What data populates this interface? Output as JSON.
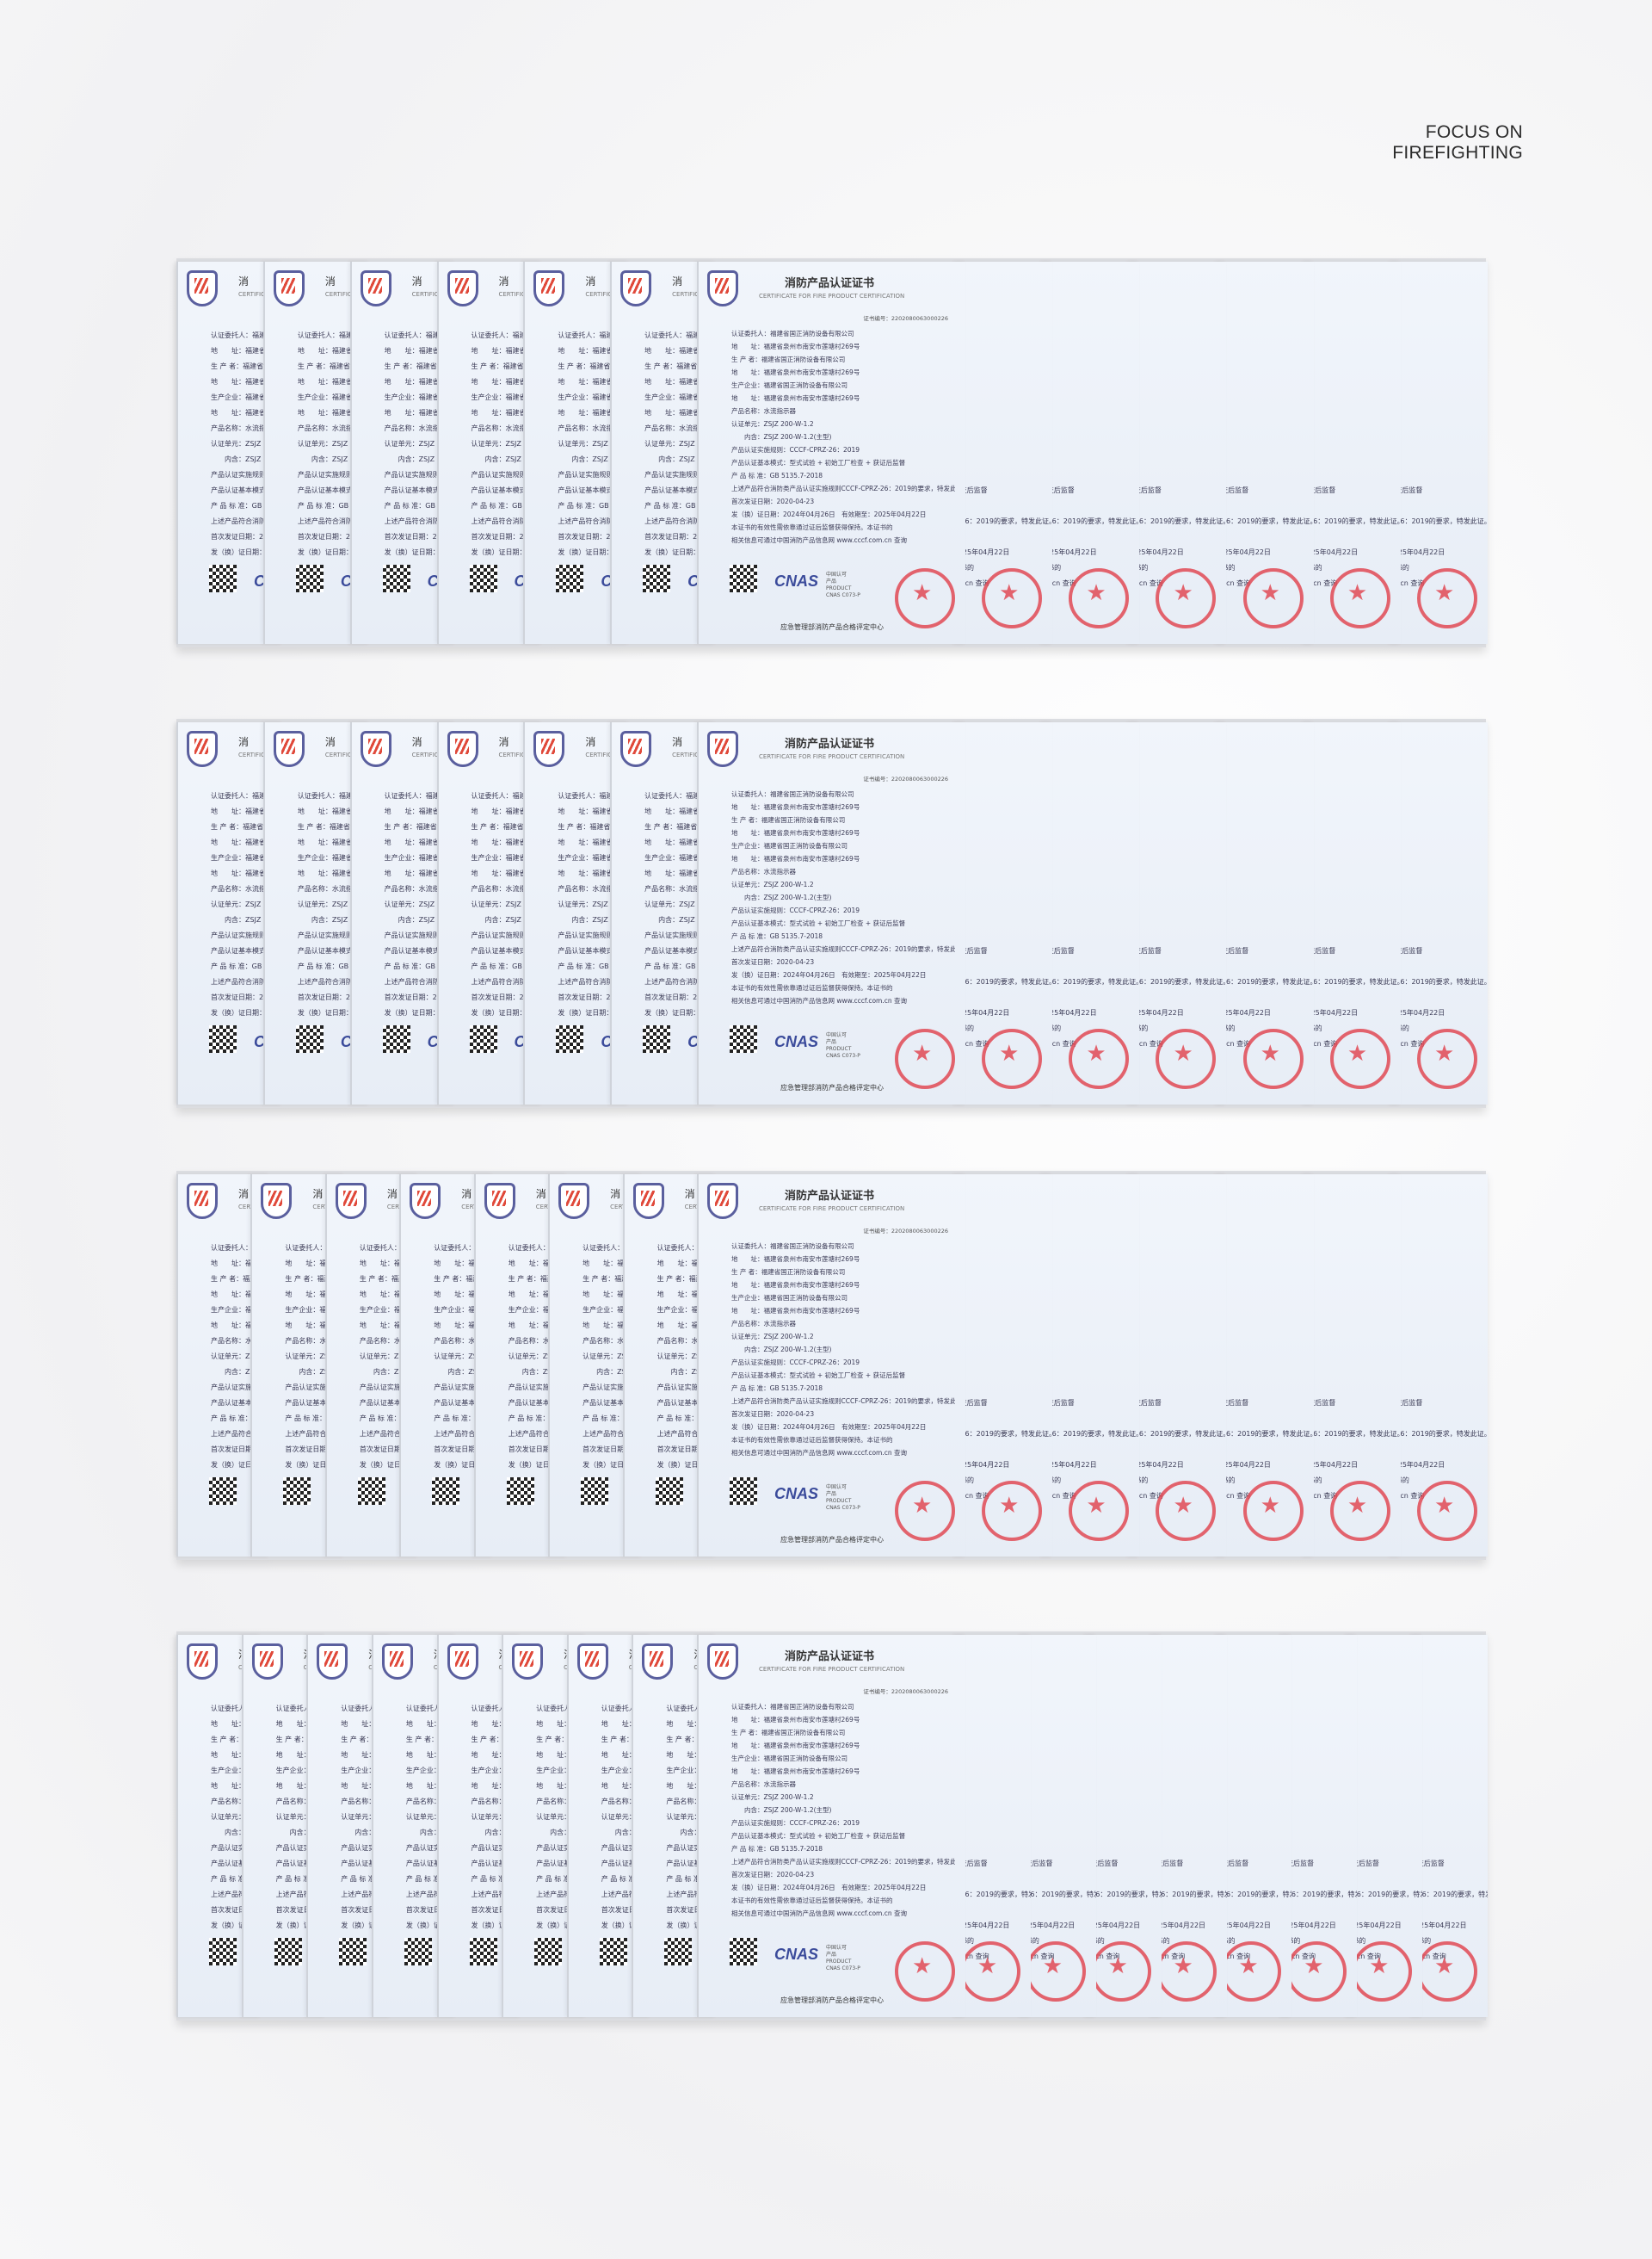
{
  "brand": {
    "line1": "FOCUS ON",
    "line2": "FIREFIGHTING"
  },
  "certificate": {
    "title": "消防产品认证证书",
    "subtitle": "CERTIFICATE FOR FIRE PRODUCT CERTIFICATION",
    "strip_title": "消",
    "strip_subtitle": "CERTIFICATE",
    "cert_no": "证书编号：2202080063000226",
    "fields": [
      "认证委托人：福建省国正消防设备有限公司",
      "地　　址：福建省泉州市南安市莲塘村269号",
      "生 产 者：福建省国正消防设备有限公司",
      "地　　址：福建省泉州市南安市莲塘村269号",
      "生产企业：福建省国正消防设备有限公司",
      "地　　址：福建省泉州市南安市莲塘村269号",
      "产品名称：水流指示器",
      "认证单元：ZSJZ 200-W-1.2",
      "　　内含：ZSJZ 200-W-1.2(主型)",
      "产品认证实施规则：CCCF-CPRZ-26：2019",
      "产品认证基本模式：型式试验 + 初始工厂检查 + 获证后监督",
      "产 品 标 准：GB 5135.7-2018",
      "上述产品符合消防类产品认证实施规则CCCF-CPRZ-26：2019的要求，特发此证。",
      "首次发证日期：2020-04-23",
      "发（换）证日期：2024年04月26日　有效期至：2025年04月22日",
      "本证书的有效性需依靠通过证后监督获得保持。本证书的",
      "相关信息可通过中国消防产品信息网 www.cccf.com.cn 查询"
    ],
    "cnas_logo": "CNAS",
    "cnas_info": [
      "中国认可",
      "产品",
      "PRODUCT",
      "CNAS C073-P"
    ],
    "issuer": "应急管理部消防产品合格评定中心"
  },
  "rows": [
    {
      "left_cards": 6,
      "right_cards": 6
    },
    {
      "left_cards": 6,
      "right_cards": 6
    },
    {
      "left_cards": 7,
      "right_cards": 6
    },
    {
      "left_cards": 8,
      "right_cards": 8
    }
  ]
}
